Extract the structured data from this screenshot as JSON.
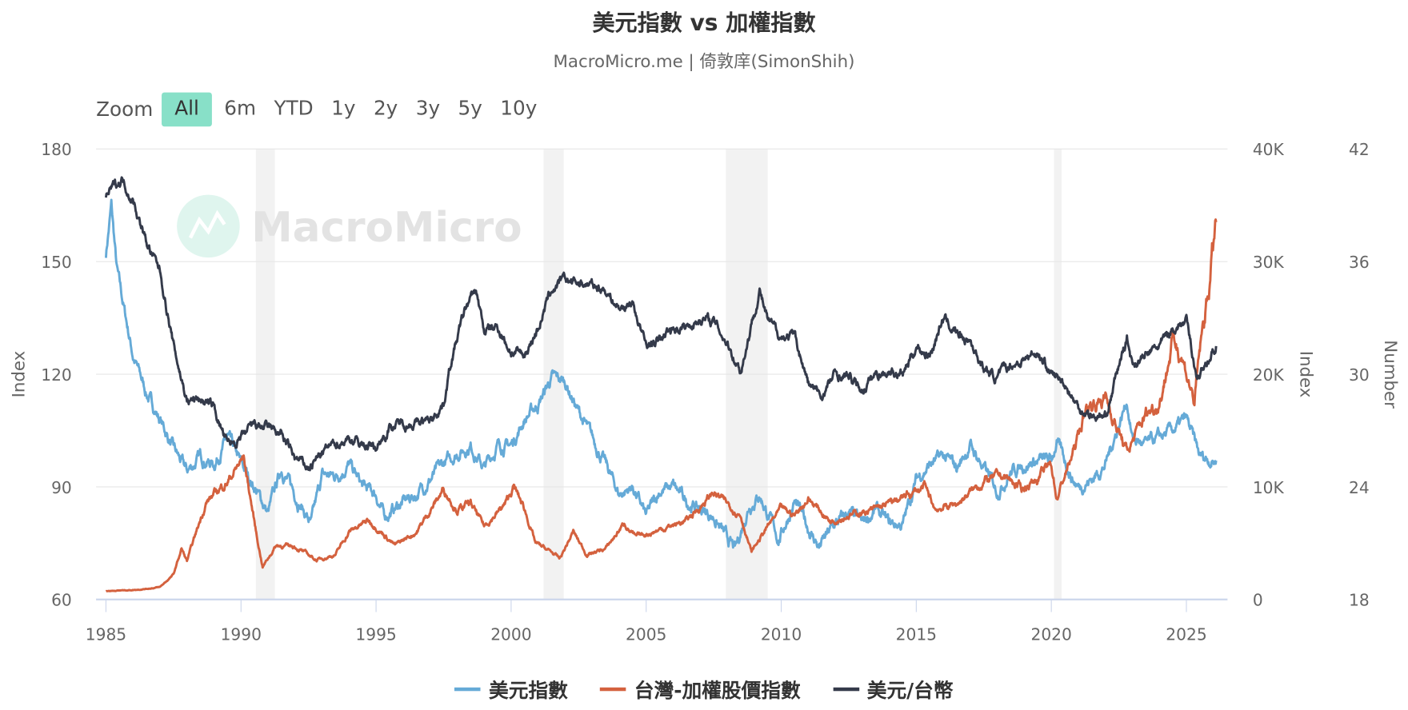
{
  "header": {
    "title": "美元指數 vs 加權指數",
    "subtitle": "MacroMicro.me | 倚敦庠(SimonShih)"
  },
  "watermark": {
    "text": "MacroMicro"
  },
  "zoom": {
    "label": "Zoom",
    "buttons": [
      {
        "label": "All",
        "active": true
      },
      {
        "label": "6m"
      },
      {
        "label": "YTD"
      },
      {
        "label": "1y"
      },
      {
        "label": "2y"
      },
      {
        "label": "3y"
      },
      {
        "label": "5y"
      },
      {
        "label": "10y"
      }
    ]
  },
  "chart_data": {
    "type": "line",
    "title": "美元指數 vs 加權指數",
    "x_ticks": [
      "1985",
      "1990",
      "1995",
      "2000",
      "2005",
      "2010",
      "2015",
      "2020",
      "2025"
    ],
    "xlim": [
      1984.6,
      2026.5
    ],
    "axes": {
      "left": {
        "label": "Index",
        "ticks": [
          "60",
          "90",
          "120",
          "150",
          "180"
        ],
        "range": [
          60,
          180
        ]
      },
      "right1": {
        "label": "Index",
        "ticks": [
          "0",
          "10K",
          "20K",
          "30K",
          "40K"
        ],
        "range": [
          0,
          40000
        ]
      },
      "right2": {
        "label": "Number",
        "ticks": [
          "18",
          "24",
          "30",
          "36",
          "42"
        ],
        "range": [
          18,
          42
        ]
      }
    },
    "grid": true,
    "legend_placement": "bottom",
    "recession_bands": [
      [
        1990.55,
        1991.25
      ],
      [
        2001.2,
        2001.95
      ],
      [
        2007.95,
        2009.5
      ],
      [
        2020.1,
        2020.38
      ]
    ],
    "series": [
      {
        "name": "美元指數",
        "axis": "left",
        "color": "#65aad7",
        "points": [
          [
            1985.0,
            152
          ],
          [
            1985.2,
            165
          ],
          [
            1985.4,
            148
          ],
          [
            1985.6,
            140
          ],
          [
            1986.0,
            125
          ],
          [
            1986.5,
            115
          ],
          [
            1987.0,
            108
          ],
          [
            1987.5,
            100
          ],
          [
            1988.0,
            94
          ],
          [
            1988.5,
            98
          ],
          [
            1989.0,
            96
          ],
          [
            1989.5,
            103
          ],
          [
            1990.0,
            96
          ],
          [
            1990.5,
            90
          ],
          [
            1991.0,
            83
          ],
          [
            1991.5,
            95
          ],
          [
            1992.0,
            88
          ],
          [
            1992.6,
            80
          ],
          [
            1993.0,
            93
          ],
          [
            1993.5,
            93
          ],
          [
            1994.0,
            96
          ],
          [
            1994.5,
            90
          ],
          [
            1995.0,
            88
          ],
          [
            1995.3,
            82
          ],
          [
            1996.0,
            86
          ],
          [
            1996.5,
            88
          ],
          [
            1997.0,
            92
          ],
          [
            1997.5,
            96
          ],
          [
            1998.0,
            99
          ],
          [
            1998.5,
            101
          ],
          [
            1999.0,
            95
          ],
          [
            1999.5,
            101
          ],
          [
            2000.0,
            101
          ],
          [
            2000.5,
            108
          ],
          [
            2001.0,
            112
          ],
          [
            2001.5,
            119
          ],
          [
            2002.0,
            118
          ],
          [
            2002.5,
            110
          ],
          [
            2003.0,
            103
          ],
          [
            2003.5,
            96
          ],
          [
            2004.0,
            88
          ],
          [
            2004.5,
            90
          ],
          [
            2005.0,
            82
          ],
          [
            2005.5,
            89
          ],
          [
            2006.0,
            90
          ],
          [
            2006.5,
            86
          ],
          [
            2007.0,
            84
          ],
          [
            2007.5,
            82
          ],
          [
            2008.0,
            76
          ],
          [
            2008.3,
            73
          ],
          [
            2008.8,
            85
          ],
          [
            2009.2,
            88
          ],
          [
            2009.9,
            76
          ],
          [
            2010.5,
            86
          ],
          [
            2011.0,
            79
          ],
          [
            2011.4,
            74
          ],
          [
            2012.0,
            80
          ],
          [
            2012.5,
            83
          ],
          [
            2013.0,
            80
          ],
          [
            2013.5,
            84
          ],
          [
            2014.0,
            80
          ],
          [
            2014.5,
            80
          ],
          [
            2015.0,
            92
          ],
          [
            2015.5,
            96
          ],
          [
            2016.0,
            98
          ],
          [
            2016.5,
            95
          ],
          [
            2017.0,
            101
          ],
          [
            2017.5,
            95
          ],
          [
            2018.0,
            89
          ],
          [
            2018.5,
            94
          ],
          [
            2019.0,
            96
          ],
          [
            2019.5,
            97
          ],
          [
            2020.0,
            97
          ],
          [
            2020.2,
            102
          ],
          [
            2020.8,
            92
          ],
          [
            2021.0,
            90
          ],
          [
            2021.5,
            92
          ],
          [
            2022.0,
            96
          ],
          [
            2022.8,
            113
          ],
          [
            2023.0,
            103
          ],
          [
            2023.5,
            101
          ],
          [
            2024.0,
            103
          ],
          [
            2024.5,
            105
          ],
          [
            2025.0,
            108
          ],
          [
            2025.5,
            98
          ],
          [
            2026.1,
            97
          ]
        ]
      },
      {
        "name": "台灣-加權股價指數",
        "axis": "right1",
        "color": "#d4613e",
        "points": [
          [
            1985.0,
            750
          ],
          [
            1986.0,
            850
          ],
          [
            1986.5,
            950
          ],
          [
            1987.0,
            1100
          ],
          [
            1987.5,
            2200
          ],
          [
            1987.8,
            4500
          ],
          [
            1988.0,
            3400
          ],
          [
            1988.7,
            8600
          ],
          [
            1989.5,
            10500
          ],
          [
            1990.1,
            12600
          ],
          [
            1990.6,
            5400
          ],
          [
            1990.8,
            2900
          ],
          [
            1991.3,
            4800
          ],
          [
            1992.0,
            4700
          ],
          [
            1992.8,
            3500
          ],
          [
            1993.5,
            4000
          ],
          [
            1994.0,
            6000
          ],
          [
            1994.7,
            7000
          ],
          [
            1995.0,
            6500
          ],
          [
            1995.7,
            4800
          ],
          [
            1996.5,
            6000
          ],
          [
            1997.5,
            9800
          ],
          [
            1998.0,
            8000
          ],
          [
            1998.5,
            8500
          ],
          [
            1999.0,
            6500
          ],
          [
            1999.8,
            8500
          ],
          [
            2000.1,
            10000
          ],
          [
            2000.5,
            8000
          ],
          [
            2000.9,
            5000
          ],
          [
            2001.5,
            4200
          ],
          [
            2001.8,
            3600
          ],
          [
            2002.3,
            6000
          ],
          [
            2002.8,
            4000
          ],
          [
            2003.5,
            4500
          ],
          [
            2004.2,
            6800
          ],
          [
            2004.6,
            5500
          ],
          [
            2005.5,
            6200
          ],
          [
            2006.5,
            7000
          ],
          [
            2007.5,
            9500
          ],
          [
            2008.0,
            8500
          ],
          [
            2008.5,
            7500
          ],
          [
            2008.9,
            4200
          ],
          [
            2009.5,
            6500
          ],
          [
            2010.0,
            8000
          ],
          [
            2010.5,
            7500
          ],
          [
            2011.0,
            9000
          ],
          [
            2011.8,
            7000
          ],
          [
            2012.5,
            7500
          ],
          [
            2013.5,
            8000
          ],
          [
            2014.5,
            9000
          ],
          [
            2015.3,
            10000
          ],
          [
            2015.7,
            8000
          ],
          [
            2016.5,
            8500
          ],
          [
            2017.5,
            10500
          ],
          [
            2018.2,
            11000
          ],
          [
            2018.9,
            9800
          ],
          [
            2019.5,
            10800
          ],
          [
            2020.0,
            12000
          ],
          [
            2020.2,
            9000
          ],
          [
            2020.8,
            13000
          ],
          [
            2021.3,
            17000
          ],
          [
            2022.0,
            18000
          ],
          [
            2022.8,
            13000
          ],
          [
            2023.5,
            16500
          ],
          [
            2024.0,
            17500
          ],
          [
            2024.5,
            23000
          ],
          [
            2024.8,
            22000
          ],
          [
            2025.3,
            17500
          ],
          [
            2025.5,
            22000
          ],
          [
            2025.8,
            27000
          ],
          [
            2026.1,
            33500
          ]
        ]
      },
      {
        "name": "美元/台幣",
        "axis": "right2",
        "color": "#343a4a",
        "points": [
          [
            1985.0,
            39.5
          ],
          [
            1985.3,
            40.0
          ],
          [
            1985.6,
            40.4
          ],
          [
            1986.0,
            39.3
          ],
          [
            1986.5,
            37.0
          ],
          [
            1987.0,
            35.5
          ],
          [
            1987.5,
            31.5
          ],
          [
            1988.0,
            28.6
          ],
          [
            1988.5,
            28.7
          ],
          [
            1989.0,
            28.2
          ],
          [
            1989.5,
            26.2
          ],
          [
            1990.0,
            26.5
          ],
          [
            1990.5,
            27.3
          ],
          [
            1991.0,
            27.1
          ],
          [
            1991.5,
            26.8
          ],
          [
            1992.0,
            25.5
          ],
          [
            1992.5,
            25.0
          ],
          [
            1993.0,
            25.8
          ],
          [
            1993.5,
            26.3
          ],
          [
            1994.0,
            26.6
          ],
          [
            1994.5,
            26.3
          ],
          [
            1995.0,
            26.1
          ],
          [
            1995.5,
            27.2
          ],
          [
            1996.0,
            27.4
          ],
          [
            1996.5,
            27.4
          ],
          [
            1997.0,
            27.5
          ],
          [
            1997.5,
            28.5
          ],
          [
            1997.8,
            30.8
          ],
          [
            1998.3,
            33.5
          ],
          [
            1998.7,
            34.5
          ],
          [
            1999.0,
            32.3
          ],
          [
            1999.5,
            32.5
          ],
          [
            2000.0,
            31.2
          ],
          [
            2000.5,
            31.0
          ],
          [
            2001.0,
            32.5
          ],
          [
            2001.5,
            34.5
          ],
          [
            2002.0,
            35.0
          ],
          [
            2002.8,
            34.8
          ],
          [
            2003.5,
            34.5
          ],
          [
            2004.0,
            33.5
          ],
          [
            2004.5,
            33.8
          ],
          [
            2005.0,
            31.5
          ],
          [
            2005.5,
            31.8
          ],
          [
            2006.0,
            32.5
          ],
          [
            2006.5,
            32.5
          ],
          [
            2007.0,
            33.0
          ],
          [
            2007.5,
            32.8
          ],
          [
            2008.0,
            31.7
          ],
          [
            2008.5,
            30.2
          ],
          [
            2009.2,
            34.5
          ],
          [
            2009.5,
            32.8
          ],
          [
            2010.0,
            32.0
          ],
          [
            2010.5,
            32.0
          ],
          [
            2011.0,
            29.5
          ],
          [
            2011.5,
            28.8
          ],
          [
            2012.0,
            30.0
          ],
          [
            2012.5,
            29.8
          ],
          [
            2013.0,
            29.2
          ],
          [
            2013.5,
            30.0
          ],
          [
            2014.0,
            30.2
          ],
          [
            2014.5,
            30.0
          ],
          [
            2015.0,
            31.5
          ],
          [
            2015.5,
            31.0
          ],
          [
            2016.0,
            33.0
          ],
          [
            2016.5,
            32.2
          ],
          [
            2017.0,
            31.8
          ],
          [
            2017.5,
            30.3
          ],
          [
            2018.0,
            29.8
          ],
          [
            2018.5,
            30.5
          ],
          [
            2019.0,
            30.8
          ],
          [
            2019.5,
            31.2
          ],
          [
            2020.0,
            30.0
          ],
          [
            2020.5,
            29.5
          ],
          [
            2021.0,
            28.2
          ],
          [
            2021.5,
            27.8
          ],
          [
            2022.0,
            27.7
          ],
          [
            2022.8,
            32.0
          ],
          [
            2023.0,
            30.5
          ],
          [
            2023.5,
            31.0
          ],
          [
            2024.0,
            31.5
          ],
          [
            2024.5,
            32.5
          ],
          [
            2025.0,
            32.8
          ],
          [
            2025.4,
            29.8
          ],
          [
            2025.7,
            30.5
          ],
          [
            2026.1,
            31.5
          ]
        ]
      }
    ]
  }
}
